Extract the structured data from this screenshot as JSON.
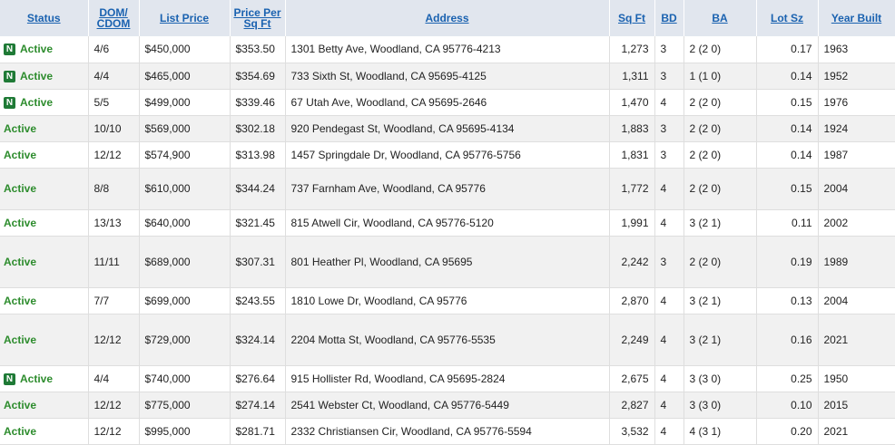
{
  "headers": {
    "status": "Status",
    "dom_line1": "DOM/",
    "dom_line2": "CDOM",
    "list_price": "List Price",
    "ppsf_line1": "Price Per",
    "ppsf_line2": "Sq Ft",
    "address": "Address",
    "sqft": "Sq Ft",
    "bd": "BD",
    "ba": "BA",
    "lot": "Lot Sz",
    "year": "Year Built"
  },
  "new_badge": "N",
  "rows": [
    {
      "is_new": true,
      "status": "Active",
      "dom": "4/6",
      "price": "$450,000",
      "ppsf": "$353.50",
      "address": "1301 Betty Ave, Woodland, CA 95776-4213",
      "sqft": "1,273",
      "bd": "3",
      "ba": "2 (2 0)",
      "lot": "0.17",
      "year": "1963"
    },
    {
      "is_new": true,
      "status": "Active",
      "dom": "4/4",
      "price": "$465,000",
      "ppsf": "$354.69",
      "address": "733 Sixth St, Woodland, CA 95695-4125",
      "sqft": "1,311",
      "bd": "3",
      "ba": "1 (1 0)",
      "lot": "0.14",
      "year": "1952"
    },
    {
      "is_new": true,
      "status": "Active",
      "dom": "5/5",
      "price": "$499,000",
      "ppsf": "$339.46",
      "address": "67 Utah Ave, Woodland, CA 95695-2646",
      "sqft": "1,470",
      "bd": "4",
      "ba": "2 (2 0)",
      "lot": "0.15",
      "year": "1976"
    },
    {
      "is_new": false,
      "status": "Active",
      "dom": "10/10",
      "price": "$569,000",
      "ppsf": "$302.18",
      "address": "920 Pendegast St, Woodland, CA 95695-4134",
      "sqft": "1,883",
      "bd": "3",
      "ba": "2 (2 0)",
      "lot": "0.14",
      "year": "1924"
    },
    {
      "is_new": false,
      "status": "Active",
      "dom": "12/12",
      "price": "$574,900",
      "ppsf": "$313.98",
      "address": "1457 Springdale Dr, Woodland, CA 95776-5756",
      "sqft": "1,831",
      "bd": "3",
      "ba": "2 (2 0)",
      "lot": "0.14",
      "year": "1987"
    },
    {
      "is_new": false,
      "status": "Active",
      "dom": "8/8",
      "price": "$610,000",
      "ppsf": "$344.24",
      "address": "737 Farnham Ave, Woodland, CA 95776",
      "sqft": "1,772",
      "bd": "4",
      "ba": "2 (2 0)",
      "lot": "0.15",
      "year": "2004"
    },
    {
      "is_new": false,
      "status": "Active",
      "dom": "13/13",
      "price": "$640,000",
      "ppsf": "$321.45",
      "address": "815 Atwell Cir, Woodland, CA 95776-5120",
      "sqft": "1,991",
      "bd": "4",
      "ba": "3 (2 1)",
      "lot": "0.11",
      "year": "2002"
    },
    {
      "is_new": false,
      "status": "Active",
      "dom": "11/11",
      "price": "$689,000",
      "ppsf": "$307.31",
      "address": "801 Heather Pl, Woodland, CA 95695",
      "sqft": "2,242",
      "bd": "3",
      "ba": "2 (2 0)",
      "lot": "0.19",
      "year": "1989"
    },
    {
      "is_new": false,
      "status": "Active",
      "dom": "7/7",
      "price": "$699,000",
      "ppsf": "$243.55",
      "address": "1810 Lowe Dr, Woodland, CA 95776",
      "sqft": "2,870",
      "bd": "4",
      "ba": "3 (2 1)",
      "lot": "0.13",
      "year": "2004"
    },
    {
      "is_new": false,
      "status": "Active",
      "dom": "12/12",
      "price": "$729,000",
      "ppsf": "$324.14",
      "address": "2204 Motta St, Woodland, CA 95776-5535",
      "sqft": "2,249",
      "bd": "4",
      "ba": "3 (2 1)",
      "lot": "0.16",
      "year": "2021"
    },
    {
      "is_new": true,
      "status": "Active",
      "dom": "4/4",
      "price": "$740,000",
      "ppsf": "$276.64",
      "address": "915 Hollister Rd, Woodland, CA 95695-2824",
      "sqft": "2,675",
      "bd": "4",
      "ba": "3 (3 0)",
      "lot": "0.25",
      "year": "1950"
    },
    {
      "is_new": false,
      "status": "Active",
      "dom": "12/12",
      "price": "$775,000",
      "ppsf": "$274.14",
      "address": "2541 Webster Ct, Woodland, CA 95776-5449",
      "sqft": "2,827",
      "bd": "4",
      "ba": "3 (3 0)",
      "lot": "0.10",
      "year": "2015"
    },
    {
      "is_new": false,
      "status": "Active",
      "dom": "12/12",
      "price": "$995,000",
      "ppsf": "$281.71",
      "address": "2332 Christiansen Cir, Woodland, CA 95776-5594",
      "sqft": "3,532",
      "bd": "4",
      "ba": "4 (3 1)",
      "lot": "0.20",
      "year": "2021"
    }
  ]
}
